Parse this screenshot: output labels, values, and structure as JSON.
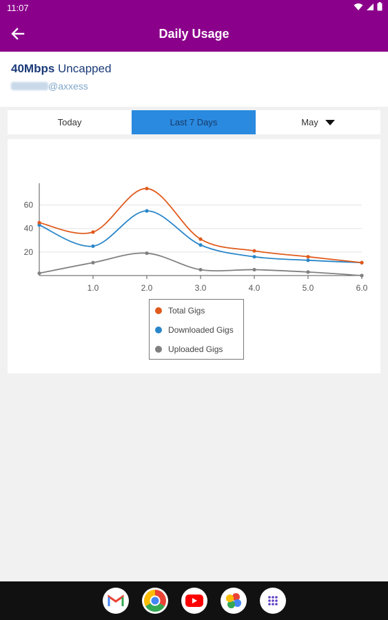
{
  "status_bar": {
    "time": "11:07"
  },
  "header": {
    "title": "Daily Usage",
    "back_icon": "arrow-left-icon"
  },
  "account": {
    "speed": "40Mbps",
    "plan_type": "Uncapped",
    "email_domain": "@axxess"
  },
  "tabs": [
    {
      "label": "Today",
      "active": false
    },
    {
      "label": "Last 7 Days",
      "active": true
    },
    {
      "label": "May",
      "active": false,
      "icon": "caret-down-icon"
    }
  ],
  "colors": {
    "app_bar": "#8b008b",
    "active_tab": "#2a8ae0",
    "total": "#e05a1c",
    "downloaded": "#2a86c9",
    "uploaded": "#808080"
  },
  "chart_data": {
    "type": "line",
    "x": [
      0,
      1,
      2,
      3,
      4,
      5,
      6
    ],
    "series": [
      {
        "name": "Total Gigs",
        "color": "#e05a1c",
        "values": [
          45,
          37,
          74,
          31,
          21,
          16,
          11
        ]
      },
      {
        "name": "Downloaded Gigs",
        "color": "#2a86c9",
        "values": [
          43,
          25,
          55,
          26,
          16,
          13,
          11
        ]
      },
      {
        "name": "Uploaded Gigs",
        "color": "#808080",
        "values": [
          2,
          11,
          19,
          5,
          5,
          3,
          0
        ]
      }
    ],
    "xticks": [
      "1.0",
      "2.0",
      "3.0",
      "4.0",
      "5.0",
      "6.0"
    ],
    "yticks": [
      "20",
      "40",
      "60"
    ],
    "xlim": [
      0,
      6
    ],
    "ylim": [
      0,
      75
    ],
    "grid": true,
    "legend_position": "bottom-center"
  },
  "nav_apps": [
    {
      "name": "gmail-icon"
    },
    {
      "name": "chrome-icon"
    },
    {
      "name": "youtube-icon"
    },
    {
      "name": "photos-icon"
    },
    {
      "name": "app-drawer-icon"
    }
  ]
}
